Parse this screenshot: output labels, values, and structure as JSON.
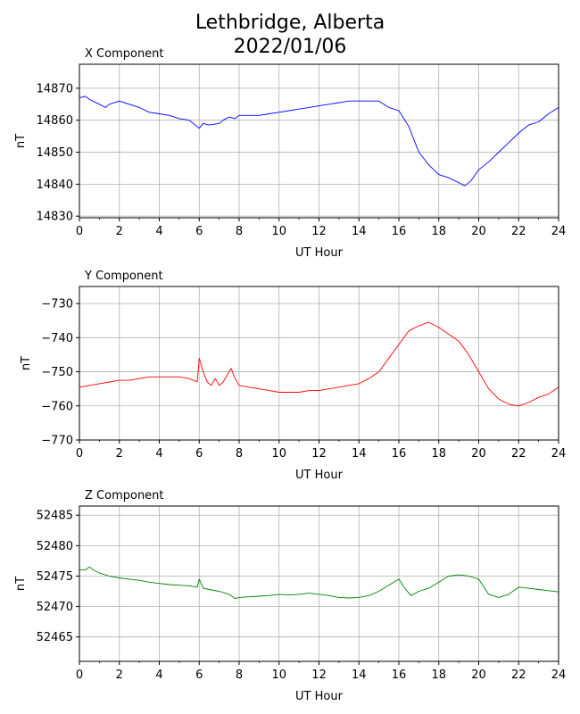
{
  "figure": {
    "title_line1": "Lethbridge, Alberta",
    "title_line2": "2022/01/06"
  },
  "chart_data": [
    {
      "type": "line",
      "title": "X Component",
      "xlabel": "UT Hour",
      "ylabel": "nT",
      "xlim": [
        0,
        24
      ],
      "ylim": [
        14829.5,
        14877.5
      ],
      "xticks": [
        0,
        2,
        4,
        6,
        8,
        10,
        12,
        14,
        16,
        18,
        20,
        22,
        24
      ],
      "yticks": [
        14830,
        14840,
        14850,
        14860,
        14870
      ],
      "grid": true,
      "color": "#0000ff",
      "series": [
        {
          "x": [
            0,
            0.3,
            0.5,
            1,
            1.3,
            1.5,
            2,
            2.5,
            3,
            3.5,
            4,
            4.5,
            5,
            5.5,
            5.8,
            6,
            6.2,
            6.5,
            7,
            7.2,
            7.5,
            7.8,
            8,
            8.5,
            9,
            9.5,
            10,
            10.5,
            11,
            11.5,
            12,
            12.5,
            13,
            13.5,
            14,
            14.5,
            15,
            15.5,
            16,
            16.5,
            17,
            17.5,
            18,
            18.5,
            19,
            19.3,
            19.6,
            20,
            20.5,
            21,
            21.5,
            22,
            22.5,
            23,
            23.5,
            24
          ],
          "y": [
            14867,
            14867.5,
            14866.5,
            14865,
            14864,
            14865,
            14866,
            14865,
            14864,
            14862.5,
            14862,
            14861.5,
            14860.5,
            14860,
            14858.5,
            14857.5,
            14859,
            14858.5,
            14859,
            14860,
            14861,
            14860.5,
            14861.5,
            14861.5,
            14861.5,
            14862,
            14862.5,
            14863,
            14863.5,
            14864,
            14864.5,
            14865,
            14865.5,
            14866,
            14866,
            14866,
            14866,
            14864,
            14863,
            14858,
            14850,
            14846,
            14843,
            14842,
            14840.5,
            14839.5,
            14841,
            14844.5,
            14847,
            14850,
            14853,
            14856,
            14858.5,
            14859.5,
            14862,
            14864
          ]
        }
      ]
    },
    {
      "type": "line",
      "title": "Y Component",
      "xlabel": "UT Hour",
      "ylabel": "nT",
      "xlim": [
        0,
        24
      ],
      "ylim": [
        -770,
        -725
      ],
      "xticks": [
        0,
        2,
        4,
        6,
        8,
        10,
        12,
        14,
        16,
        18,
        20,
        22,
        24
      ],
      "yticks": [
        -730,
        -740,
        -750,
        -760,
        -770
      ],
      "grid": true,
      "color": "#ff0000",
      "series": [
        {
          "x": [
            0,
            0.5,
            1,
            1.5,
            2,
            2.5,
            3,
            3.5,
            4,
            4.5,
            5,
            5.5,
            5.9,
            6,
            6.2,
            6.4,
            6.6,
            6.8,
            7,
            7.2,
            7.4,
            7.6,
            7.8,
            8,
            8.5,
            9,
            9.5,
            10,
            10.5,
            11,
            11.5,
            12,
            12.5,
            13,
            13.5,
            14,
            14.5,
            15,
            15.5,
            16,
            16.5,
            17,
            17.5,
            18,
            18.5,
            19,
            19.5,
            20,
            20.5,
            21,
            21.5,
            22,
            22.5,
            23,
            23.5,
            24
          ],
          "y": [
            -754.5,
            -754,
            -753.5,
            -753,
            -752.5,
            -752.5,
            -752,
            -751.5,
            -751.5,
            -751.5,
            -751.5,
            -752,
            -753,
            -746,
            -750,
            -753,
            -754,
            -752,
            -754,
            -753,
            -751,
            -749,
            -752,
            -754,
            -754.5,
            -755,
            -755.5,
            -756,
            -756,
            -756,
            -755.5,
            -755.5,
            -755,
            -754.5,
            -754,
            -753.5,
            -752,
            -750,
            -746,
            -742,
            -738,
            -736.5,
            -735.5,
            -737,
            -739,
            -741,
            -745,
            -750,
            -755,
            -758,
            -759.5,
            -760,
            -759,
            -757.5,
            -756.5,
            -754.5
          ]
        }
      ]
    },
    {
      "type": "line",
      "title": "Z Component",
      "xlabel": "UT Hour",
      "ylabel": "nT",
      "xlim": [
        0,
        24
      ],
      "ylim": [
        52461,
        52486.5
      ],
      "xticks": [
        0,
        2,
        4,
        6,
        8,
        10,
        12,
        14,
        16,
        18,
        20,
        22,
        24
      ],
      "yticks": [
        52465,
        52470,
        52475,
        52480,
        52485
      ],
      "grid": true,
      "color": "#008000",
      "series": [
        {
          "x": [
            0,
            0.3,
            0.5,
            0.7,
            1,
            1.5,
            2,
            2.5,
            3,
            3.5,
            4,
            4.5,
            5,
            5.5,
            5.9,
            6,
            6.2,
            6.5,
            7,
            7.5,
            7.8,
            8,
            8.5,
            9,
            9.5,
            10,
            10.5,
            11,
            11.5,
            12,
            12.5,
            13,
            13.5,
            14,
            14.5,
            15,
            15.5,
            16,
            16.3,
            16.6,
            17,
            17.5,
            18,
            18.5,
            19,
            19.5,
            20,
            20.5,
            21,
            21.5,
            22,
            22.5,
            23,
            23.5,
            24
          ],
          "y": [
            52476,
            52476,
            52476.5,
            52476,
            52475.5,
            52475,
            52474.7,
            52474.5,
            52474.3,
            52474,
            52473.8,
            52473.6,
            52473.5,
            52473.4,
            52473.2,
            52474.5,
            52473,
            52472.8,
            52472.5,
            52472,
            52471.3,
            52471.5,
            52471.6,
            52471.7,
            52471.8,
            52472,
            52471.9,
            52472,
            52472.2,
            52472,
            52471.8,
            52471.5,
            52471.4,
            52471.5,
            52471.8,
            52472.5,
            52473.5,
            52474.5,
            52473,
            52471.8,
            52472.5,
            52473,
            52474,
            52475,
            52475.2,
            52475,
            52474.5,
            52472,
            52471.5,
            52472,
            52473.2,
            52473,
            52472.8,
            52472.6,
            52472.4
          ]
        }
      ]
    }
  ]
}
